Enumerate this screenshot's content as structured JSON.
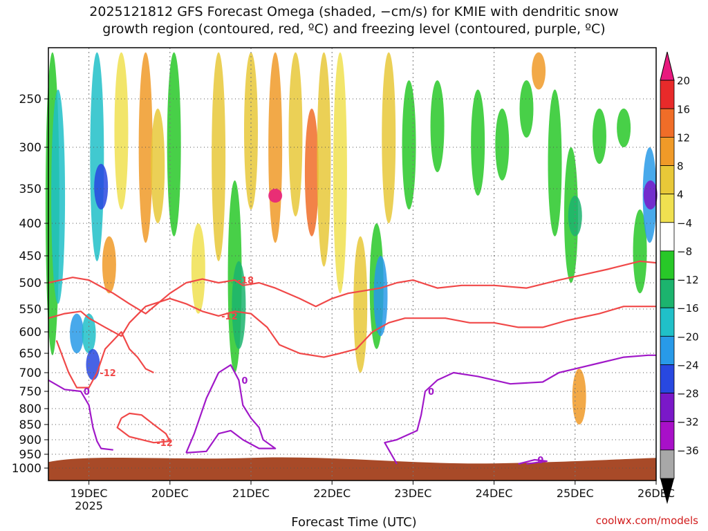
{
  "title_line1": "2025121812 GFS Forecast Omega (shaded, −cm/s) for KMIE with dendritic snow",
  "title_line2": "growth region (contoured, red, ºC) and freezing level (contoured, purple, ºC)",
  "xlabel": "Forecast Time (UTC)",
  "credit": "coolwx.com/models",
  "chart_data": {
    "type": "heatmap",
    "y_ticks": [
      "250",
      "300",
      "350",
      "400",
      "450",
      "500",
      "550",
      "600",
      "650",
      "700",
      "750",
      "800",
      "850",
      "900",
      "950",
      "1000"
    ],
    "x_ticks": [
      "19DEC",
      "20DEC",
      "21DEC",
      "22DEC",
      "23DEC",
      "24DEC",
      "25DEC",
      "26DEC"
    ],
    "x_year": "2025",
    "x_range_days": [
      18.5,
      26.0
    ],
    "y_range_hpa": [
      195,
      1000
    ],
    "colorbar": {
      "labels": [
        "20",
        "16",
        "12",
        "8",
        "4",
        "−4",
        "−8",
        "−12",
        "−16",
        "−20",
        "−24",
        "−28",
        "−32",
        "−36"
      ],
      "colors": [
        "#e8197e",
        "#e82a2a",
        "#f06d28",
        "#f09a28",
        "#e8c838",
        "#f0e050",
        "#ffffff",
        "#28c828",
        "#1cb46e",
        "#20c0c8",
        "#289ae8",
        "#2848e0",
        "#7a18c8",
        "#a810c8",
        "#a8a8a8"
      ]
    },
    "contours": [
      {
        "label": "-18",
        "color": "#f04848",
        "points": [
          [
            18.5,
            500
          ],
          [
            18.8,
            490
          ],
          [
            19.0,
            495
          ],
          [
            19.3,
            520
          ],
          [
            19.5,
            540
          ],
          [
            19.7,
            560
          ],
          [
            20.0,
            520
          ],
          [
            20.2,
            500
          ],
          [
            20.4,
            493
          ],
          [
            20.6,
            500
          ],
          [
            20.8,
            495
          ],
          [
            20.9,
            505
          ],
          [
            21.1,
            500
          ],
          [
            21.3,
            510
          ],
          [
            21.6,
            530
          ],
          [
            21.8,
            545
          ],
          [
            22.0,
            530
          ],
          [
            22.2,
            520
          ],
          [
            22.4,
            515
          ],
          [
            22.6,
            510
          ],
          [
            22.8,
            500
          ],
          [
            23.0,
            495
          ],
          [
            23.3,
            510
          ],
          [
            23.6,
            505
          ],
          [
            24.0,
            505
          ],
          [
            24.4,
            510
          ],
          [
            24.8,
            495
          ],
          [
            25.1,
            485
          ],
          [
            25.4,
            475
          ],
          [
            25.8,
            460
          ],
          [
            26.0,
            463
          ]
        ]
      },
      {
        "label": "-12",
        "color": "#f04848",
        "points": [
          [
            18.5,
            570
          ],
          [
            18.7,
            560
          ],
          [
            18.9,
            555
          ],
          [
            19.0,
            570
          ],
          [
            19.2,
            590
          ],
          [
            19.4,
            610
          ],
          [
            19.5,
            580
          ],
          [
            19.7,
            545
          ],
          [
            20.0,
            530
          ],
          [
            20.2,
            540
          ],
          [
            20.4,
            555
          ],
          [
            20.6,
            565
          ],
          [
            20.8,
            555
          ],
          [
            21.0,
            560
          ],
          [
            21.2,
            590
          ],
          [
            21.35,
            630
          ],
          [
            21.6,
            650
          ],
          [
            21.9,
            660
          ],
          [
            22.1,
            650
          ],
          [
            22.3,
            640
          ],
          [
            22.5,
            600
          ],
          [
            22.7,
            580
          ],
          [
            22.9,
            570
          ],
          [
            23.1,
            570
          ],
          [
            23.4,
            570
          ],
          [
            23.7,
            580
          ],
          [
            24.0,
            580
          ],
          [
            24.3,
            590
          ],
          [
            24.6,
            590
          ],
          [
            24.9,
            575
          ],
          [
            25.3,
            560
          ],
          [
            25.6,
            545
          ],
          [
            26.0,
            545
          ]
        ]
      },
      {
        "label": "-12",
        "color": "#f04848",
        "points": [
          [
            18.6,
            620
          ],
          [
            18.75,
            700
          ],
          [
            18.85,
            740
          ],
          [
            19.0,
            740
          ],
          [
            19.1,
            700
          ],
          [
            19.2,
            640
          ],
          [
            19.3,
            620
          ],
          [
            19.4,
            600
          ],
          [
            19.5,
            640
          ],
          [
            19.6,
            660
          ],
          [
            19.7,
            690
          ],
          [
            19.8,
            700
          ]
        ]
      },
      {
        "label": "-12",
        "color": "#f04848",
        "points": [
          [
            19.4,
            830
          ],
          [
            19.35,
            860
          ],
          [
            19.5,
            890
          ],
          [
            19.8,
            910
          ],
          [
            20.0,
            905
          ],
          [
            19.95,
            880
          ],
          [
            19.8,
            850
          ],
          [
            19.65,
            820
          ],
          [
            19.5,
            815
          ],
          [
            19.4,
            830
          ]
        ]
      },
      {
        "label": "0",
        "color": "#a018c8",
        "points": [
          [
            18.5,
            720
          ],
          [
            18.7,
            745
          ],
          [
            18.9,
            750
          ],
          [
            19.0,
            790
          ],
          [
            19.05,
            860
          ],
          [
            19.1,
            905
          ],
          [
            19.15,
            930
          ],
          [
            19.3,
            935
          ]
        ]
      },
      {
        "label": "0",
        "color": "#a018c8",
        "points": [
          [
            20.2,
            945
          ],
          [
            20.3,
            880
          ],
          [
            20.45,
            770
          ],
          [
            20.6,
            700
          ],
          [
            20.75,
            680
          ],
          [
            20.85,
            720
          ],
          [
            20.9,
            790
          ],
          [
            21.0,
            830
          ],
          [
            21.1,
            860
          ],
          [
            21.15,
            900
          ],
          [
            21.3,
            930
          ],
          [
            21.1,
            930
          ],
          [
            20.9,
            900
          ],
          [
            20.75,
            870
          ],
          [
            20.6,
            880
          ],
          [
            20.45,
            940
          ],
          [
            20.2,
            945
          ]
        ]
      },
      {
        "label": "0",
        "color": "#a018c8",
        "points": [
          [
            22.8,
            985
          ],
          [
            22.65,
            910
          ],
          [
            22.8,
            900
          ],
          [
            23.05,
            870
          ],
          [
            23.1,
            820
          ],
          [
            23.15,
            750
          ],
          [
            23.3,
            720
          ],
          [
            23.5,
            700
          ],
          [
            23.8,
            710
          ],
          [
            24.2,
            730
          ],
          [
            24.6,
            725
          ],
          [
            24.8,
            700
          ],
          [
            25.0,
            690
          ],
          [
            25.3,
            675
          ],
          [
            25.6,
            660
          ],
          [
            25.9,
            655
          ],
          [
            26.0,
            655
          ]
        ]
      },
      {
        "label": "0",
        "color": "#a018c8",
        "points": [
          [
            24.3,
            985
          ],
          [
            24.5,
            970
          ],
          [
            24.65,
            975
          ],
          [
            24.4,
            985
          ]
        ]
      }
    ],
    "terrain_top_hpa": 968,
    "terrain_color": "#a84a28"
  }
}
